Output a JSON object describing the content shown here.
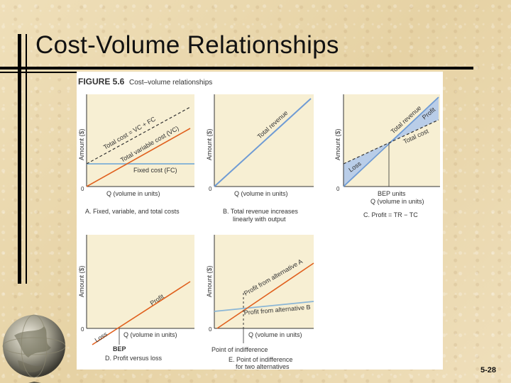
{
  "slide": {
    "title": "Cost-Volume Relationships",
    "number": "5-28"
  },
  "figure": {
    "label": "FIGURE 5.6",
    "caption": "Cost–volume relationships",
    "panels": [
      {
        "axis_y": "Amount ($)",
        "axis_x": "Q (volume in units)",
        "origin": "0",
        "lines": [
          "Total cost = VC + FC",
          "Total variable cost (VC)",
          "Fixed cost (FC)"
        ],
        "caption": "A. Fixed, variable, and total costs"
      },
      {
        "axis_y": "Amount ($)",
        "axis_x": "Q (volume in units)",
        "origin": "0",
        "lines": [
          "Total revenue"
        ],
        "caption_line1": "B. Total revenue increases",
        "caption_line2": "linearly with output"
      },
      {
        "axis_y": "Amount ($)",
        "axis_x": "Q (volume in units)",
        "origin": "0",
        "lines": [
          "Total revenue",
          "Total cost",
          "Profit",
          "Loss"
        ],
        "bep_label": "BEP units",
        "caption": "C. Profit = TR − TC"
      },
      {
        "axis_y": "Amount ($)",
        "axis_x": "Q (volume in units)",
        "origin": "0",
        "lines": [
          "Profit",
          "Loss"
        ],
        "bep_label": "BEP",
        "caption": "D. Profit versus loss"
      },
      {
        "axis_y": "Amount ($)",
        "axis_x": "Q (volume in units)",
        "origin": "0",
        "lines": [
          "Profit from alternative A",
          "Profit from alternative B"
        ],
        "indifference_label": "Point of indifference",
        "caption_line1": "E. Point of indifference",
        "caption_line2": "for two alternatives"
      }
    ]
  },
  "colors": {
    "panel_fill": "#f7efd3",
    "shaded_fill": "#b9cde8",
    "blue_line": "#6f9bd4",
    "orange_line": "#e0601e",
    "dashed_line": "#333333",
    "fixed_line": "#8bb6d6"
  }
}
